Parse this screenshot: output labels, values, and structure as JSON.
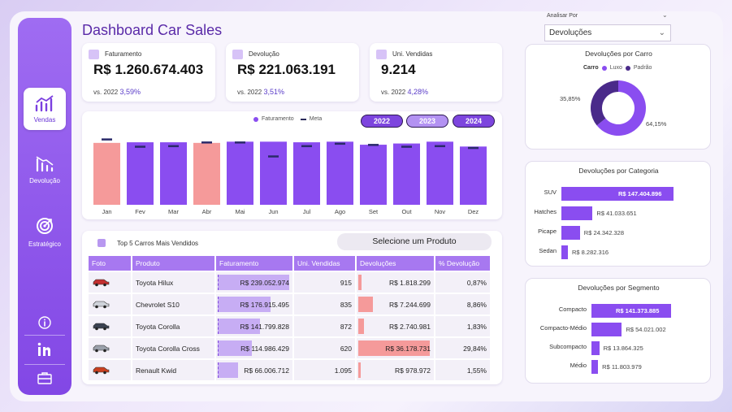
{
  "title": "Dashboard Car Sales",
  "sidebar": {
    "items": [
      {
        "label": "Vendas",
        "icon": "chart-up-icon"
      },
      {
        "label": "Devolução",
        "icon": "chart-down-icon"
      },
      {
        "label": "Estratégico",
        "icon": "target-icon"
      }
    ],
    "bottom_icons": [
      "info-icon",
      "linkedin-icon",
      "briefcase-icon"
    ]
  },
  "kpis": [
    {
      "label": "Faturamento",
      "value": "R$ 1.260.674.403",
      "compare_prefix": "vs. 2022",
      "compare_value": "3,59%"
    },
    {
      "label": "Devolução",
      "value": "R$ 221.063.191",
      "compare_prefix": "vs. 2022",
      "compare_value": "3,51%"
    },
    {
      "label": "Uni. Vendidas",
      "value": "9.214",
      "compare_prefix": "vs. 2022",
      "compare_value": "4,28%"
    }
  ],
  "years": [
    {
      "label": "2022",
      "selected": false
    },
    {
      "label": "2023",
      "selected": true
    },
    {
      "label": "2024",
      "selected": false
    }
  ],
  "colors": {
    "accent": "#8247e5",
    "bar_above": "#8a4df0",
    "bar_below": "#f59a9a",
    "meta": "#2a2a6a"
  },
  "chart_data": {
    "type": "bar",
    "legend": [
      "Faturamento",
      "Meta"
    ],
    "categories": [
      "Jan",
      "Fev",
      "Mar",
      "Abr",
      "Mai",
      "Jun",
      "Jul",
      "Ago",
      "Set",
      "Out",
      "Nov",
      "Dez"
    ],
    "series": [
      {
        "name": "Faturamento",
        "values": [
          102,
          103,
          103,
          102,
          104,
          104,
          103,
          104,
          99,
          101,
          104,
          96
        ]
      },
      {
        "name": "Meta",
        "values": [
          108,
          96,
          97,
          103,
          103,
          80,
          97,
          101,
          99,
          96,
          97,
          94
        ]
      }
    ],
    "ylim": [
      0,
      120
    ]
  },
  "table": {
    "title": "Top 5 Carros Mais Vendidos",
    "selector": "Selecione um Produto",
    "columns": [
      "Foto",
      "Produto",
      "Faturamento",
      "Uni. Vendidas",
      "Devoluções",
      "% Devolução"
    ],
    "rows": [
      {
        "produto": "Toyota Hilux",
        "faturamento": "R$ 239.052.974",
        "fat_frac": 1.0,
        "unidades": "915",
        "devolucoes": "R$ 1.818.299",
        "dev_frac": 0.05,
        "pct": "0,87%"
      },
      {
        "produto": "Chevrolet S10",
        "faturamento": "R$ 176.915.495",
        "fat_frac": 0.74,
        "unidades": "835",
        "devolucoes": "R$ 7.244.699",
        "dev_frac": 0.2,
        "pct": "8,86%"
      },
      {
        "produto": "Toyota Corolla",
        "faturamento": "R$ 141.799.828",
        "fat_frac": 0.59,
        "unidades": "872",
        "devolucoes": "R$ 2.740.981",
        "dev_frac": 0.08,
        "pct": "1,83%"
      },
      {
        "produto": "Toyota Corolla Cross",
        "faturamento": "R$ 114.986.429",
        "fat_frac": 0.48,
        "unidades": "620",
        "devolucoes": "R$ 36.178.731",
        "dev_frac": 1.0,
        "pct": "29,84%"
      },
      {
        "produto": "Renault Kwid",
        "faturamento": "R$ 66.006.712",
        "fat_frac": 0.28,
        "unidades": "1.095",
        "devolucoes": "R$ 978.972",
        "dev_frac": 0.03,
        "pct": "1,55%"
      }
    ]
  },
  "analisar": {
    "label": "Analisar Por",
    "value": "Devoluções"
  },
  "donut": {
    "title": "Devoluções por Carro",
    "legend_title": "Carro",
    "legend": [
      "Luxo",
      "Padrão"
    ],
    "slices": [
      {
        "name": "Luxo",
        "pct": 64.15,
        "label": "64,15%",
        "color": "#8a4df0"
      },
      {
        "name": "Padrão",
        "pct": 35.85,
        "label": "35,85%",
        "color": "#4a2a8a"
      }
    ]
  },
  "categoria": {
    "title": "Devoluções por Categoria",
    "rows": [
      {
        "label": "SUV",
        "value": 147404896,
        "text": "R$ 147.404.896"
      },
      {
        "label": "Hatches",
        "value": 41033651,
        "text": "R$ 41.033.651"
      },
      {
        "label": "Picape",
        "value": 24342328,
        "text": "R$ 24.342.328"
      },
      {
        "label": "Sedan",
        "value": 8282316,
        "text": "R$ 8.282.316"
      }
    ]
  },
  "segmento": {
    "title": "Devoluções por Segmento",
    "rows": [
      {
        "label": "Compacto",
        "value": 141373885,
        "text": "R$ 141.373.885"
      },
      {
        "label": "Compacto-Médio",
        "value": 54021002,
        "text": "R$ 54.021.002"
      },
      {
        "label": "Subcompacto",
        "value": 13864325,
        "text": "R$ 13.864.325"
      },
      {
        "label": "Médio",
        "value": 11803979,
        "text": "R$ 11.803.979"
      }
    ]
  }
}
